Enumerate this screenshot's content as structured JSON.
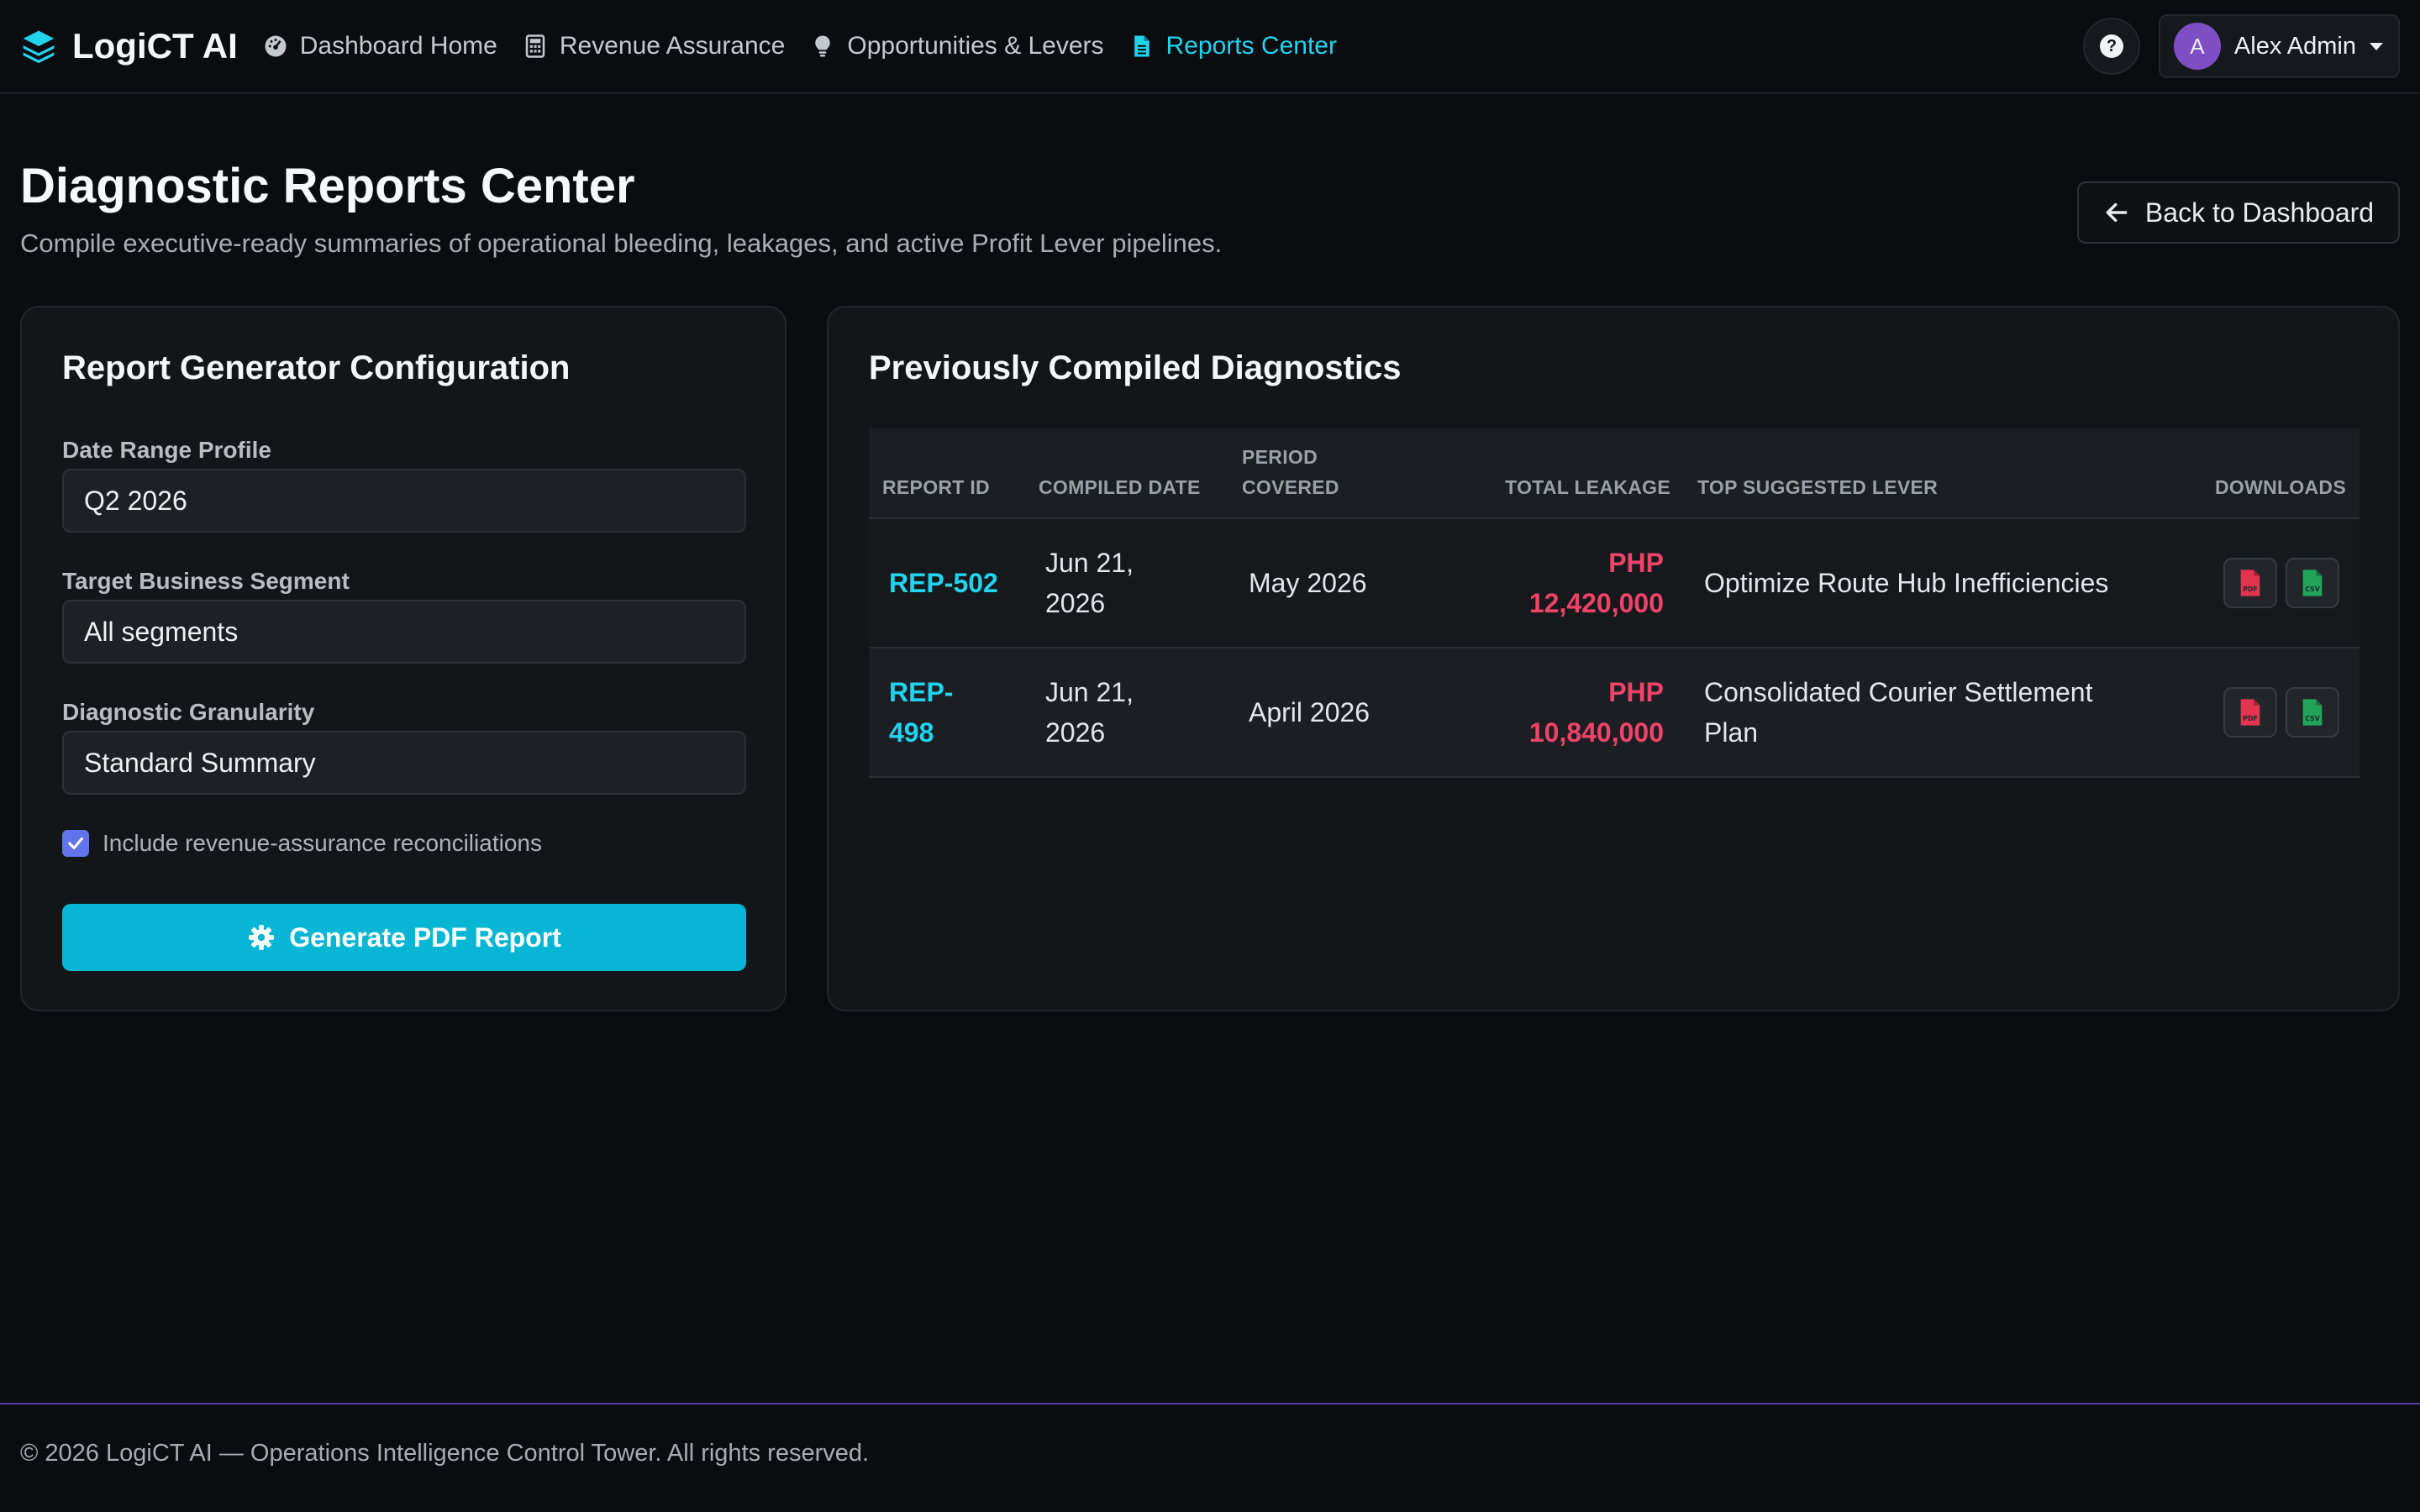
{
  "nav": {
    "brand": "LogiCT AI",
    "items": [
      {
        "label": "Dashboard Home",
        "icon": "gauge-icon",
        "active": false
      },
      {
        "label": "Revenue Assurance",
        "icon": "calculator-icon",
        "active": false
      },
      {
        "label": "Opportunities & Levers",
        "icon": "lightbulb-icon",
        "active": false
      },
      {
        "label": "Reports Center",
        "icon": "file-icon",
        "active": true
      }
    ],
    "help_symbol": "?",
    "user": {
      "initial": "A",
      "name": "Alex Admin"
    }
  },
  "header": {
    "title": "Diagnostic Reports Center",
    "subtitle": "Compile executive-ready summaries of operational bleeding, leakages, and active Profit Lever pipelines.",
    "back_label": "Back to Dashboard"
  },
  "config": {
    "title": "Report Generator Configuration",
    "date_range": {
      "label": "Date Range Profile",
      "value": "Q2 2026"
    },
    "segment": {
      "label": "Target Business Segment",
      "value": "All segments"
    },
    "granularity": {
      "label": "Diagnostic Granularity",
      "value": "Standard Summary"
    },
    "checkbox": {
      "label": "Include revenue-assurance reconciliations",
      "checked": true
    },
    "generate_label": "Generate PDF Report"
  },
  "reports": {
    "title": "Previously Compiled Diagnostics",
    "columns": {
      "report_id": "REPORT ID",
      "compiled_date": "COMPILED DATE",
      "period_line1": "PERIOD",
      "period_line2": "COVERED",
      "total_leakage": "TOTAL LEAKAGE",
      "top_lever": "TOP SUGGESTED LEVER",
      "downloads": "DOWNLOADS"
    },
    "rows": [
      {
        "id_line1": "REP-502",
        "id_line2": "",
        "date_line1": "Jun 21,",
        "date_line2": "2026",
        "period": "May 2026",
        "currency": "PHP",
        "amount": "12,420,000",
        "lever_line1": "Optimize Route Hub Inefficiencies",
        "lever_line2": ""
      },
      {
        "id_line1": "REP-",
        "id_line2": "498",
        "date_line1": "Jun 21,",
        "date_line2": "2026",
        "period": "April 2026",
        "currency": "PHP",
        "amount": "10,840,000",
        "lever_line1": "Consolidated Courier Settlement",
        "lever_line2": "Plan"
      }
    ],
    "download_icons": {
      "pdf": "file-pdf-icon",
      "csv": "file-csv-icon"
    }
  },
  "footer": {
    "text": "© 2026 LogiCT AI — Operations Intelligence Control Tower. All rights reserved."
  },
  "colors": {
    "accent": "#22d3ee",
    "button": "#06b6d4",
    "leakage": "#f0436a",
    "pdf": "#e0344f",
    "csv": "#22a35a",
    "avatar": "#7e4fc4",
    "footer_border": "#5b3aa8"
  }
}
